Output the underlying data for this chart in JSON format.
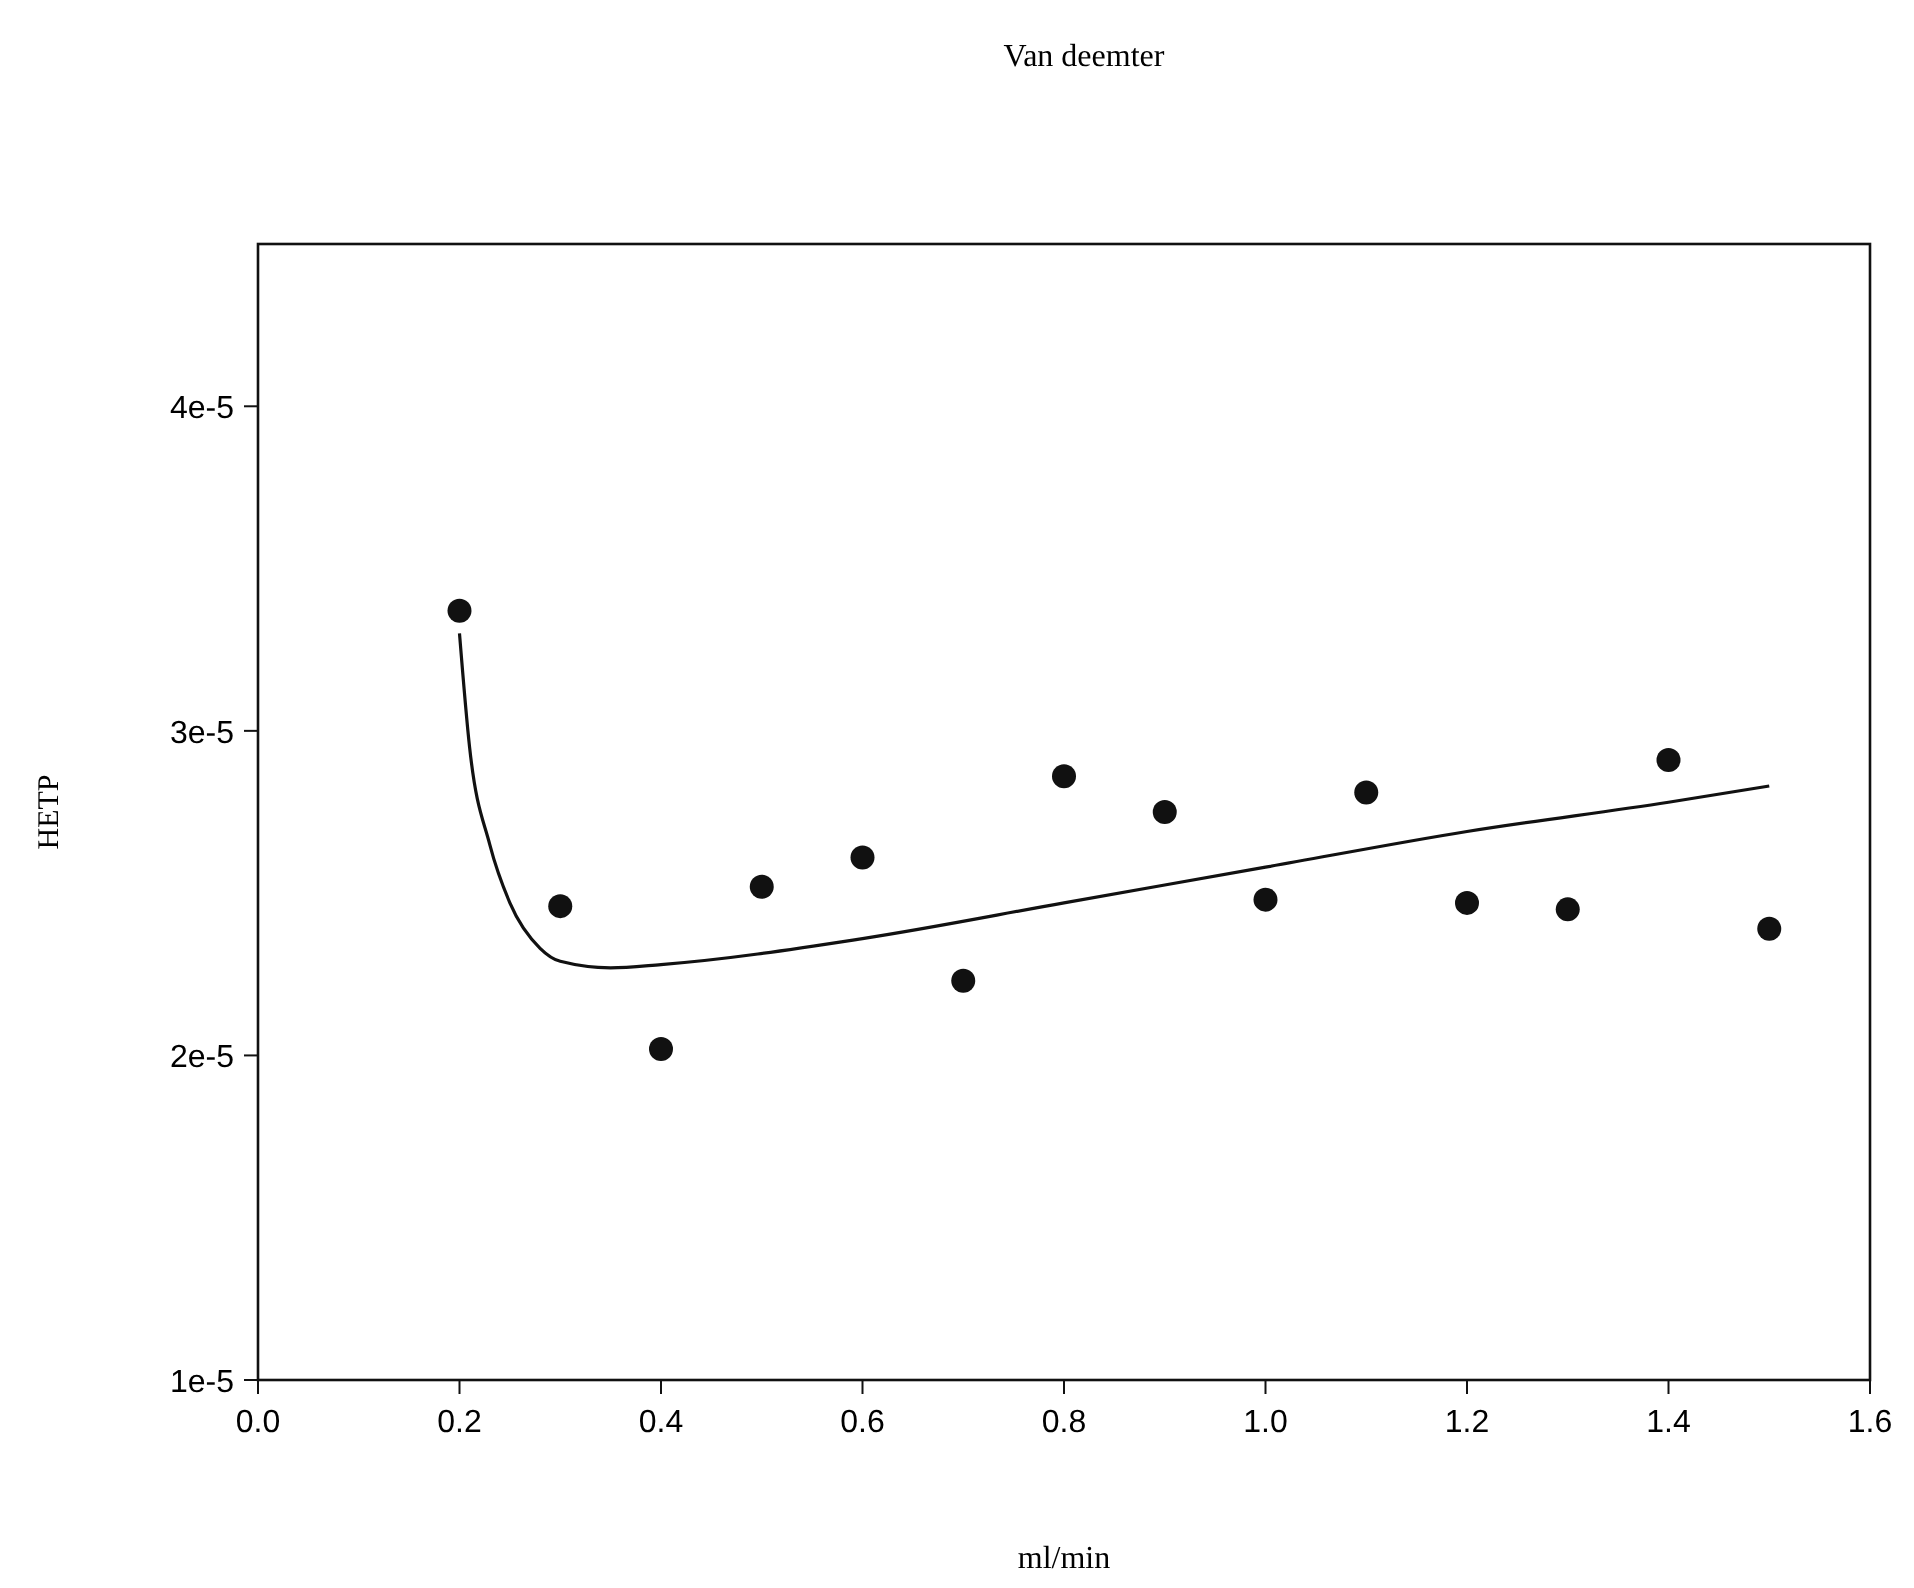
{
  "chart_data": {
    "type": "scatter",
    "title": "Van deemter",
    "xlabel": "ml/min",
    "ylabel": "HETP",
    "xlim": [
      0,
      1.6
    ],
    "xticks": [
      {
        "value": 0,
        "label": "0.0"
      },
      0.2,
      0.4,
      0.6,
      0.8,
      {
        "value": 1,
        "label": "1.0"
      },
      1.2,
      1.4,
      1.6
    ],
    "ylim": [
      1e-05,
      4.5e-05
    ],
    "yticks": [
      {
        "value": 1e-05,
        "label": "1e-5"
      },
      {
        "value": 2e-05,
        "label": "2e-5"
      },
      {
        "value": 3e-05,
        "label": "3e-5"
      },
      {
        "value": 4e-05,
        "label": "4e-5"
      }
    ],
    "grid": false,
    "marker": "circle",
    "series": [
      {
        "color": "#111111",
        "x": [
          0.2,
          0.3,
          0.4,
          0.5,
          0.6,
          0.7,
          0.8,
          0.9,
          1.0,
          1.1,
          1.2,
          1.3,
          1.4,
          1.5
        ],
        "values": [
          3.37e-05,
          2.46e-05,
          2.02e-05,
          2.52e-05,
          2.61e-05,
          2.23e-05,
          2.86e-05,
          2.75e-05,
          2.48e-05,
          2.81e-05,
          2.47e-05,
          2.45e-05,
          2.91e-05,
          2.39e-05
        ]
      },
      {
        "type": "line",
        "color": "#111111",
        "marker": "none",
        "line_style": "solid",
        "x": [
          0.2,
          0.21,
          0.23,
          0.25,
          0.28,
          0.3,
          0.35,
          0.4,
          0.6,
          0.8,
          1.0,
          1.2,
          1.4,
          1.5
        ],
        "values": [
          3.3e-05,
          2.95e-05,
          2.65e-05,
          2.47e-05,
          2.33e-05,
          2.29e-05,
          2.27e-05,
          2.28e-05,
          2.36e-05,
          2.47e-05,
          2.58e-05,
          2.69e-05,
          2.78e-05,
          2.83e-05
        ]
      }
    ]
  }
}
